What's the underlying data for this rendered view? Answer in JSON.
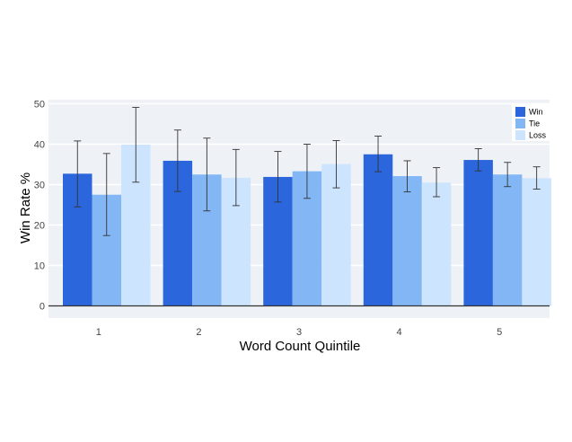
{
  "chart_data": {
    "type": "bar",
    "categories": [
      "1",
      "2",
      "3",
      "4",
      "5"
    ],
    "series": [
      {
        "name": "Win",
        "values": [
          32.7,
          35.9,
          31.9,
          37.5,
          36.1
        ],
        "err_low": [
          24.5,
          28.3,
          25.7,
          33.2,
          33.4
        ],
        "err_high": [
          40.8,
          43.5,
          38.2,
          42.0,
          38.9
        ],
        "color": "#2c66dc"
      },
      {
        "name": "Tie",
        "values": [
          27.5,
          32.5,
          33.3,
          32.1,
          32.5
        ],
        "err_low": [
          17.4,
          23.5,
          26.6,
          28.2,
          29.5
        ],
        "err_high": [
          37.7,
          41.5,
          40.0,
          35.9,
          35.5
        ],
        "color": "#82b6f5"
      },
      {
        "name": "Loss",
        "values": [
          39.9,
          31.7,
          35.1,
          30.5,
          31.6
        ],
        "err_low": [
          30.6,
          24.8,
          29.2,
          27.0,
          28.9
        ],
        "err_high": [
          49.1,
          38.7,
          40.9,
          34.2,
          34.4
        ],
        "color": "#cce4fd"
      }
    ],
    "xlabel": "Word Count Quintile",
    "ylabel": "Win Rate %",
    "ylim": [
      -3,
      51
    ],
    "yticks": [
      "0",
      "10",
      "20",
      "30",
      "40",
      "50"
    ],
    "grid": true,
    "legend": "top-right",
    "colors": {
      "plot_bg": "#eef2f6",
      "grid": "#ffffff",
      "zero_line": "#333333",
      "error_bar": "#333333"
    }
  }
}
